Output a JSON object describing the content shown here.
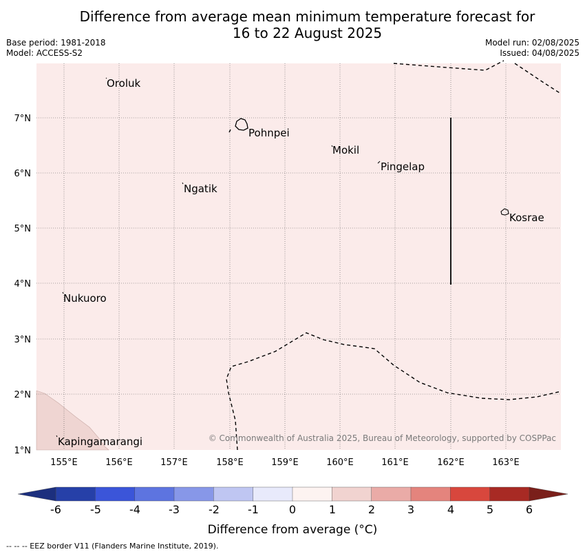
{
  "title": {
    "line1": "Difference from average mean minimum temperature forecast for",
    "line2": "16 to 22 August 2025"
  },
  "meta_left": {
    "base_period": "Base period: 1981-2018",
    "model": "Model: ACCESS-S2"
  },
  "meta_right": {
    "model_run": "Model run: 02/08/2025",
    "issued": "Issued: 04/08/2025"
  },
  "map": {
    "lat_labels": [
      "7°N",
      "6°N",
      "5°N",
      "4°N",
      "3°N",
      "2°N",
      "1°N"
    ],
    "lon_labels": [
      "155°E",
      "156°E",
      "157°E",
      "158°E",
      "159°E",
      "160°E",
      "161°E",
      "162°E",
      "163°E"
    ],
    "places": [
      {
        "name": "Oroluk"
      },
      {
        "name": "Pohnpei"
      },
      {
        "name": "Mokil"
      },
      {
        "name": "Pingelap"
      },
      {
        "name": "Ngatik"
      },
      {
        "name": "Kosrae"
      },
      {
        "name": "Nukuoro"
      },
      {
        "name": "Kapingamarangi"
      }
    ],
    "copyright": "© Commonwealth of Australia 2025, Bureau of Meteorology, supported by COSPPac",
    "background_color": "#fbebea",
    "anomaly_patch_color": "#efd5d2"
  },
  "colorbar": {
    "title": "Difference from average (°C)",
    "ticks": [
      "-6",
      "-5",
      "-4",
      "-3",
      "-2",
      "-1",
      "0",
      "1",
      "2",
      "3",
      "4",
      "5",
      "6"
    ],
    "colors": [
      "#2640a8",
      "#3b55d9",
      "#5d74e0",
      "#8797e8",
      "#bfc6f2",
      "#e8eafb",
      "#fdf3f1",
      "#f1d3d0",
      "#eaaba7",
      "#e4847d",
      "#d8473d",
      "#a82a24"
    ],
    "under_color": "#1c2f7e",
    "over_color": "#7a1f1a"
  },
  "footer": "--  --  -- EEZ border V11 (Flanders Marine Institute, 2019)."
}
